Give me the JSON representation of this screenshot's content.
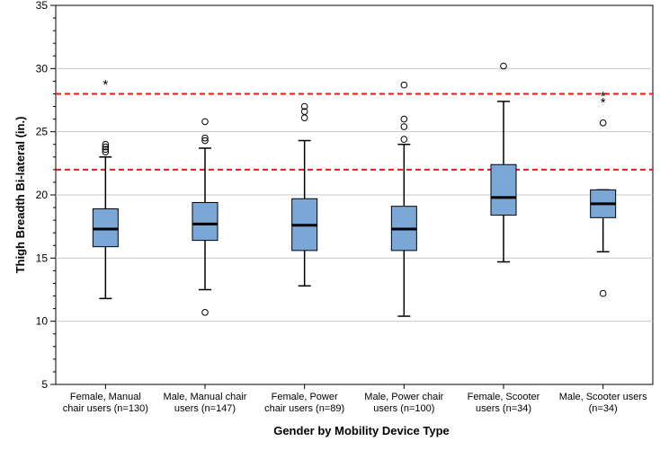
{
  "chart_data": {
    "type": "box",
    "xlabel": "Gender by Mobility Device Type",
    "ylabel": "Thigh Breadth Bi-lateral (in.)",
    "ylim": [
      5,
      35
    ],
    "yticks": [
      5,
      10,
      15,
      20,
      25,
      30,
      35
    ],
    "grid": true,
    "categories": [
      [
        "Female, Manual",
        "chair users (n=130)"
      ],
      [
        "Male, Manual chair",
        "users (n=147)"
      ],
      [
        "Female, Power",
        "chair users (n=89)"
      ],
      [
        "Male, Power chair",
        "users (n=100)"
      ],
      [
        "Female, Scooter",
        "users (n=34)"
      ],
      [
        "Male, Scooter users",
        "(n=34)"
      ]
    ],
    "boxes": [
      {
        "whisker_low": 11.8,
        "q1": 15.9,
        "median": 17.3,
        "q3": 18.9,
        "whisker_high": 23.0,
        "outliers": [
          23.4,
          23.6,
          23.8,
          24.0
        ],
        "extremes": [
          28.8
        ]
      },
      {
        "whisker_low": 12.5,
        "q1": 16.4,
        "median": 17.7,
        "q3": 19.4,
        "whisker_high": 23.7,
        "outliers": [
          10.7,
          24.3,
          24.5,
          25.8
        ],
        "extremes": []
      },
      {
        "whisker_low": 12.8,
        "q1": 15.6,
        "median": 17.6,
        "q3": 19.7,
        "whisker_high": 24.3,
        "outliers": [
          26.1,
          26.6,
          27.0
        ],
        "extremes": []
      },
      {
        "whisker_low": 10.4,
        "q1": 15.6,
        "median": 17.3,
        "q3": 19.1,
        "whisker_high": 24.0,
        "outliers": [
          24.4,
          25.4,
          26.0,
          28.7
        ],
        "extremes": []
      },
      {
        "whisker_low": 14.7,
        "q1": 18.4,
        "median": 19.8,
        "q3": 22.4,
        "whisker_high": 27.4,
        "outliers": [
          30.2
        ],
        "extremes": []
      },
      {
        "whisker_low": 15.5,
        "q1": 18.2,
        "median": 19.3,
        "q3": 20.4,
        "whisker_high": 20.4,
        "outliers": [
          12.2,
          25.7
        ],
        "extremes": [
          27.4,
          27.9
        ]
      }
    ],
    "reference_lines": [
      22,
      28
    ],
    "colors": {
      "box_fill": "#7BA7D7",
      "box_stroke": "#000000",
      "grid": "#C8C8C8",
      "reference_line": "#E41A1C"
    }
  }
}
